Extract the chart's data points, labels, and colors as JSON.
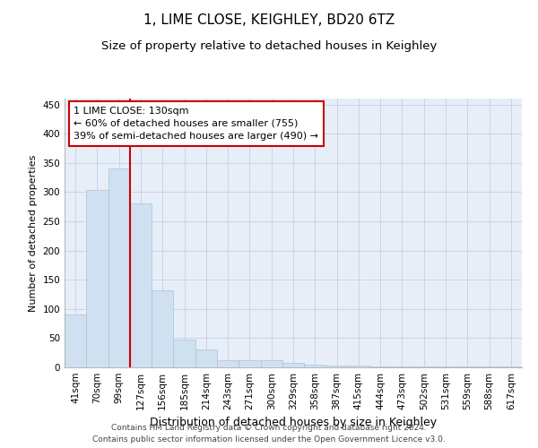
{
  "title": "1, LIME CLOSE, KEIGHLEY, BD20 6TZ",
  "subtitle": "Size of property relative to detached houses in Keighley",
  "xlabel": "Distribution of detached houses by size in Keighley",
  "ylabel": "Number of detached properties",
  "categories": [
    "41sqm",
    "70sqm",
    "99sqm",
    "127sqm",
    "156sqm",
    "185sqm",
    "214sqm",
    "243sqm",
    "271sqm",
    "300sqm",
    "329sqm",
    "358sqm",
    "387sqm",
    "415sqm",
    "444sqm",
    "473sqm",
    "502sqm",
    "531sqm",
    "559sqm",
    "588sqm",
    "617sqm"
  ],
  "values": [
    90,
    303,
    340,
    280,
    132,
    47,
    30,
    13,
    13,
    13,
    7,
    5,
    3,
    3,
    2,
    1,
    1,
    1,
    1,
    1,
    1
  ],
  "bar_color": "#cfe0f0",
  "bar_edge_color": "#a8c4e0",
  "vline_index": 3,
  "vline_color": "#cc0000",
  "annotation_text": "1 LIME CLOSE: 130sqm\n← 60% of detached houses are smaller (755)\n39% of semi-detached houses are larger (490) →",
  "annotation_box_color": "#ffffff",
  "annotation_box_edge": "#cc0000",
  "ylim": [
    0,
    460
  ],
  "yticks": [
    0,
    50,
    100,
    150,
    200,
    250,
    300,
    350,
    400,
    450
  ],
  "grid_color": "#c8d4e8",
  "background_color": "#e8eef8",
  "footer": "Contains HM Land Registry data © Crown copyright and database right 2024.\nContains public sector information licensed under the Open Government Licence v3.0.",
  "title_fontsize": 11,
  "subtitle_fontsize": 9.5,
  "xlabel_fontsize": 9,
  "ylabel_fontsize": 8,
  "tick_fontsize": 7.5,
  "footer_fontsize": 6.5,
  "ann_fontsize": 8
}
